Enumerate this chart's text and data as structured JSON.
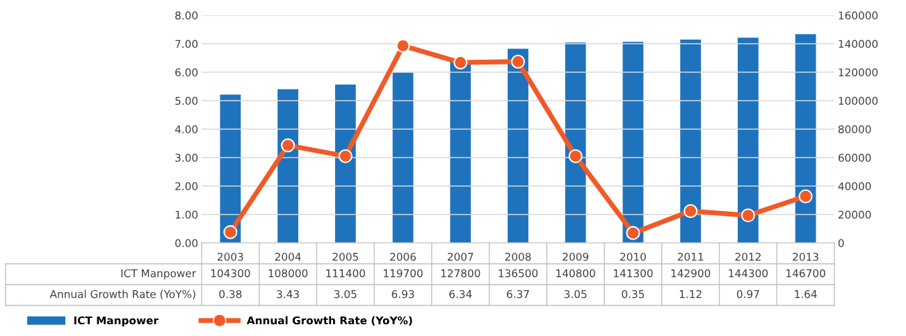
{
  "chart_data": {
    "type": "bar",
    "categories": [
      "2003",
      "2004",
      "2005",
      "2006",
      "2007",
      "2008",
      "2009",
      "2010",
      "2011",
      "2012",
      "2013"
    ],
    "series": [
      {
        "name": "ICT Manpower",
        "axis": "y2",
        "color": "#1f73bd",
        "values": [
          104300,
          108000,
          111400,
          119700,
          127800,
          136500,
          140800,
          141300,
          142900,
          144300,
          146700
        ]
      },
      {
        "name": "Annual Growth Rate (YoY%)",
        "type": "line",
        "axis": "y",
        "color": "#f05a28",
        "marker": "circle",
        "values": [
          0.38,
          3.43,
          3.05,
          6.93,
          6.34,
          6.37,
          3.05,
          0.35,
          1.12,
          0.97,
          1.64
        ]
      }
    ],
    "ylim": [
      0,
      8
    ],
    "yticks": [
      {
        "value": 0,
        "label": "0.00"
      },
      {
        "value": 1,
        "label": "1.00"
      },
      {
        "value": 2,
        "label": "2.00"
      },
      {
        "value": 3,
        "label": "3.00"
      },
      {
        "value": 4,
        "label": "4.00"
      },
      {
        "value": 5,
        "label": "5.00"
      },
      {
        "value": 6,
        "label": "6.00"
      },
      {
        "value": 7,
        "label": "7.00"
      },
      {
        "value": 8,
        "label": "8.00"
      }
    ],
    "y2lim": [
      0,
      160000
    ],
    "y2ticks": [
      0,
      20000,
      40000,
      60000,
      80000,
      100000,
      120000,
      140000,
      160000
    ],
    "grid": "y",
    "legend": "bottom left",
    "data_labels": true
  }
}
